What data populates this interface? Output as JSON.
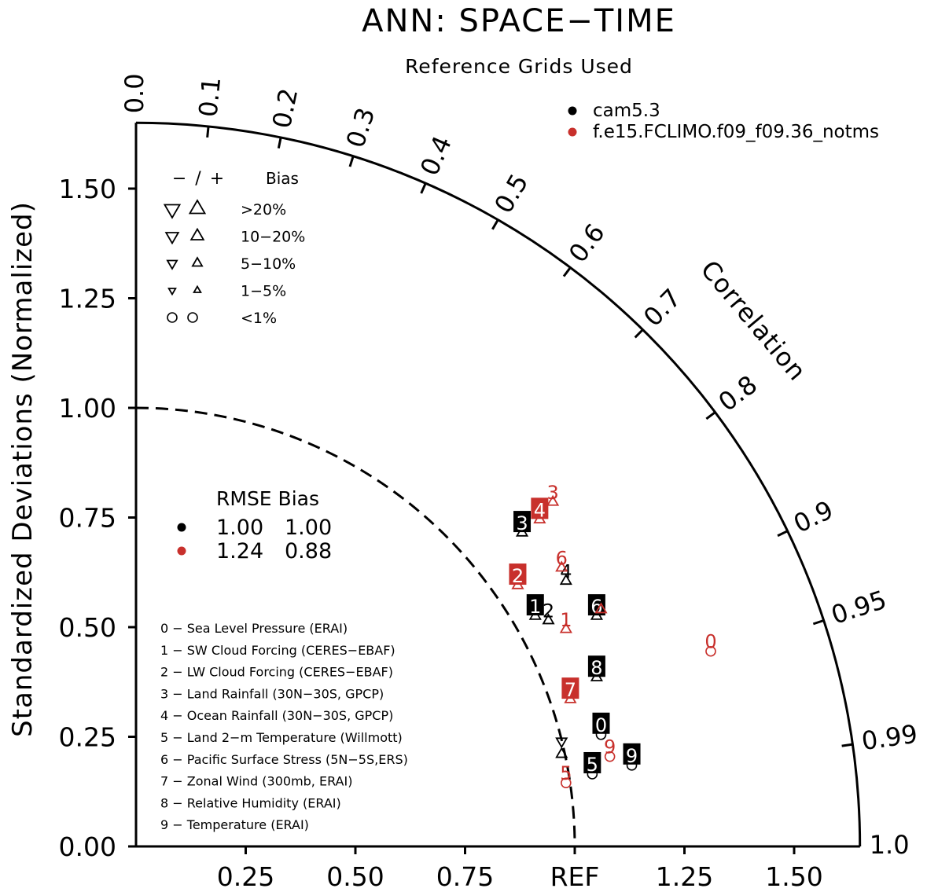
{
  "title": "ANN: SPACE−TIME",
  "subtitle": "Reference Grids Used",
  "colors": {
    "black": "#000000",
    "red": "#c8302c",
    "white": "#ffffff"
  },
  "chart_data": {
    "type": "scatter",
    "diagram": "taylor",
    "ylabel": "Standardized Deviations (Normalized)",
    "arc_label": "Correlation",
    "ref_label": "REF",
    "ylim": [
      0,
      1.65
    ],
    "y_ticks": [
      {
        "value": 0.0,
        "label": "0.00"
      },
      {
        "value": 0.25,
        "label": "0.25"
      },
      {
        "value": 0.5,
        "label": "0.50"
      },
      {
        "value": 0.75,
        "label": "0.75"
      },
      {
        "value": 1.0,
        "label": "1.00"
      },
      {
        "value": 1.25,
        "label": "1.25"
      },
      {
        "value": 1.5,
        "label": "1.50"
      }
    ],
    "x_ticks": [
      {
        "value": 0.25,
        "label": "0.25"
      },
      {
        "value": 0.5,
        "label": "0.50"
      },
      {
        "value": 0.75,
        "label": "0.75"
      },
      {
        "value": 1.0,
        "label": "REF"
      },
      {
        "value": 1.25,
        "label": "1.25"
      },
      {
        "value": 1.5,
        "label": "1.50"
      }
    ],
    "correlation_ticks": [
      {
        "value": 0.0,
        "label": "0.0"
      },
      {
        "value": 0.1,
        "label": "0.1"
      },
      {
        "value": 0.2,
        "label": "0.2"
      },
      {
        "value": 0.3,
        "label": "0.3"
      },
      {
        "value": 0.4,
        "label": "0.4"
      },
      {
        "value": 0.5,
        "label": "0.5"
      },
      {
        "value": 0.6,
        "label": "0.6"
      },
      {
        "value": 0.7,
        "label": "0.7"
      },
      {
        "value": 0.8,
        "label": "0.8"
      },
      {
        "value": 0.9,
        "label": "0.9"
      },
      {
        "value": 0.95,
        "label": "0.95"
      },
      {
        "value": 0.99,
        "label": "0.99"
      },
      {
        "value": 1.0,
        "label": "1.0"
      }
    ],
    "reference_arc": 1.0,
    "series": [
      {
        "name": "cam5.3",
        "color": "#000000",
        "rmse": "1.00",
        "bias": "1.00",
        "points": [
          {
            "id": "0",
            "x": 1.06,
            "y": 0.28,
            "label_style": "box",
            "marker": "circle",
            "dir": "none"
          },
          {
            "id": "1",
            "x": 0.91,
            "y": 0.55,
            "label_style": "box",
            "marker": "triangle-up",
            "dir": "up"
          },
          {
            "id": "2",
            "x": 0.94,
            "y": 0.54,
            "label_style": "plain",
            "marker": "triangle-up",
            "dir": "up"
          },
          {
            "id": "3",
            "x": 0.88,
            "y": 0.74,
            "label_style": "box",
            "marker": "triangle-up",
            "dir": "up"
          },
          {
            "id": "4",
            "x": 0.98,
            "y": 0.63,
            "label_style": "plain",
            "marker": "triangle-up",
            "dir": "up"
          },
          {
            "id": "5",
            "x": 1.04,
            "y": 0.19,
            "label_style": "box",
            "marker": "circle",
            "dir": "none"
          },
          {
            "id": "6",
            "x": 1.05,
            "y": 0.55,
            "label_style": "box",
            "marker": "triangle-up",
            "dir": "up"
          },
          {
            "id": "8",
            "x": 1.05,
            "y": 0.41,
            "label_style": "box",
            "marker": "triangle-up",
            "dir": "up"
          },
          {
            "id": "9",
            "x": 1.13,
            "y": 0.21,
            "label_style": "box",
            "marker": "circle",
            "dir": "none"
          }
        ]
      },
      {
        "name": "f.e15.FCLIMO.f09_f09.36_notms",
        "color": "#c8302c",
        "rmse": "1.24",
        "bias": "0.88",
        "points": [
          {
            "id": "0",
            "x": 1.31,
            "y": 0.47,
            "label_style": "plain",
            "marker": "circle",
            "dir": "none"
          },
          {
            "id": "1",
            "x": 0.98,
            "y": 0.52,
            "label_style": "plain",
            "marker": "triangle-up",
            "dir": "up"
          },
          {
            "id": "2",
            "x": 0.87,
            "y": 0.62,
            "label_style": "box",
            "marker": "triangle-up",
            "dir": "up"
          },
          {
            "id": "3",
            "x": 0.95,
            "y": 0.81,
            "label_style": "plain",
            "marker": "triangle-up",
            "dir": "up"
          },
          {
            "id": "4",
            "x": 0.92,
            "y": 0.77,
            "label_style": "box",
            "marker": "triangle-up",
            "dir": "up"
          },
          {
            "id": "5",
            "x": 0.98,
            "y": 0.17,
            "label_style": "plain",
            "marker": "circle",
            "dir": "none"
          },
          {
            "id": "6",
            "x": 0.97,
            "y": 0.66,
            "label_style": "plain",
            "marker": "triangle-up",
            "dir": "up"
          },
          {
            "id": "7",
            "x": 0.99,
            "y": 0.36,
            "label_style": "box",
            "marker": "triangle-up",
            "dir": "up"
          },
          {
            "id": "9",
            "x": 1.08,
            "y": 0.23,
            "label_style": "plain",
            "marker": "circle",
            "dir": "none"
          }
        ]
      }
    ],
    "extra_markers": [
      {
        "color": "#000000",
        "x": 0.97,
        "y": 0.24,
        "marker": "triangle-down",
        "dir": "down"
      },
      {
        "color": "#000000",
        "x": 0.97,
        "y": 0.21,
        "marker": "triangle-up",
        "dir": "up"
      },
      {
        "color": "#c8302c",
        "x": 1.06,
        "y": 0.54,
        "marker": "triangle-up",
        "dir": "up"
      }
    ],
    "bias_legend": {
      "header_sign": "− / +",
      "header_label": "Bias",
      "rows": [
        {
          "label": ">20%",
          "size": "xl",
          "marker": "triangle"
        },
        {
          "label": "10−20%",
          "size": "l",
          "marker": "triangle"
        },
        {
          "label": "5−10%",
          "size": "m",
          "marker": "triangle"
        },
        {
          "label": "1−5%",
          "size": "s",
          "marker": "triangle"
        },
        {
          "label": "<1%",
          "size": "m",
          "marker": "circle"
        }
      ]
    },
    "rmse_header": "RMSE Bias",
    "variables": [
      "0 − Sea Level Pressure (ERAI)",
      "1 − SW Cloud Forcing (CERES−EBAF)",
      "2 − LW Cloud Forcing (CERES−EBAF)",
      "3 − Land Rainfall (30N−30S, GPCP)",
      "4 − Ocean Rainfall (30N−30S, GPCP)",
      "5 − Land 2−m Temperature (Willmott)",
      "6 − Pacific Surface Stress (5N−5S,ERS)",
      "7 − Zonal Wind (300mb, ERAI)",
      "8 − Relative Humidity (ERAI)",
      "9 − Temperature (ERAI)"
    ]
  }
}
